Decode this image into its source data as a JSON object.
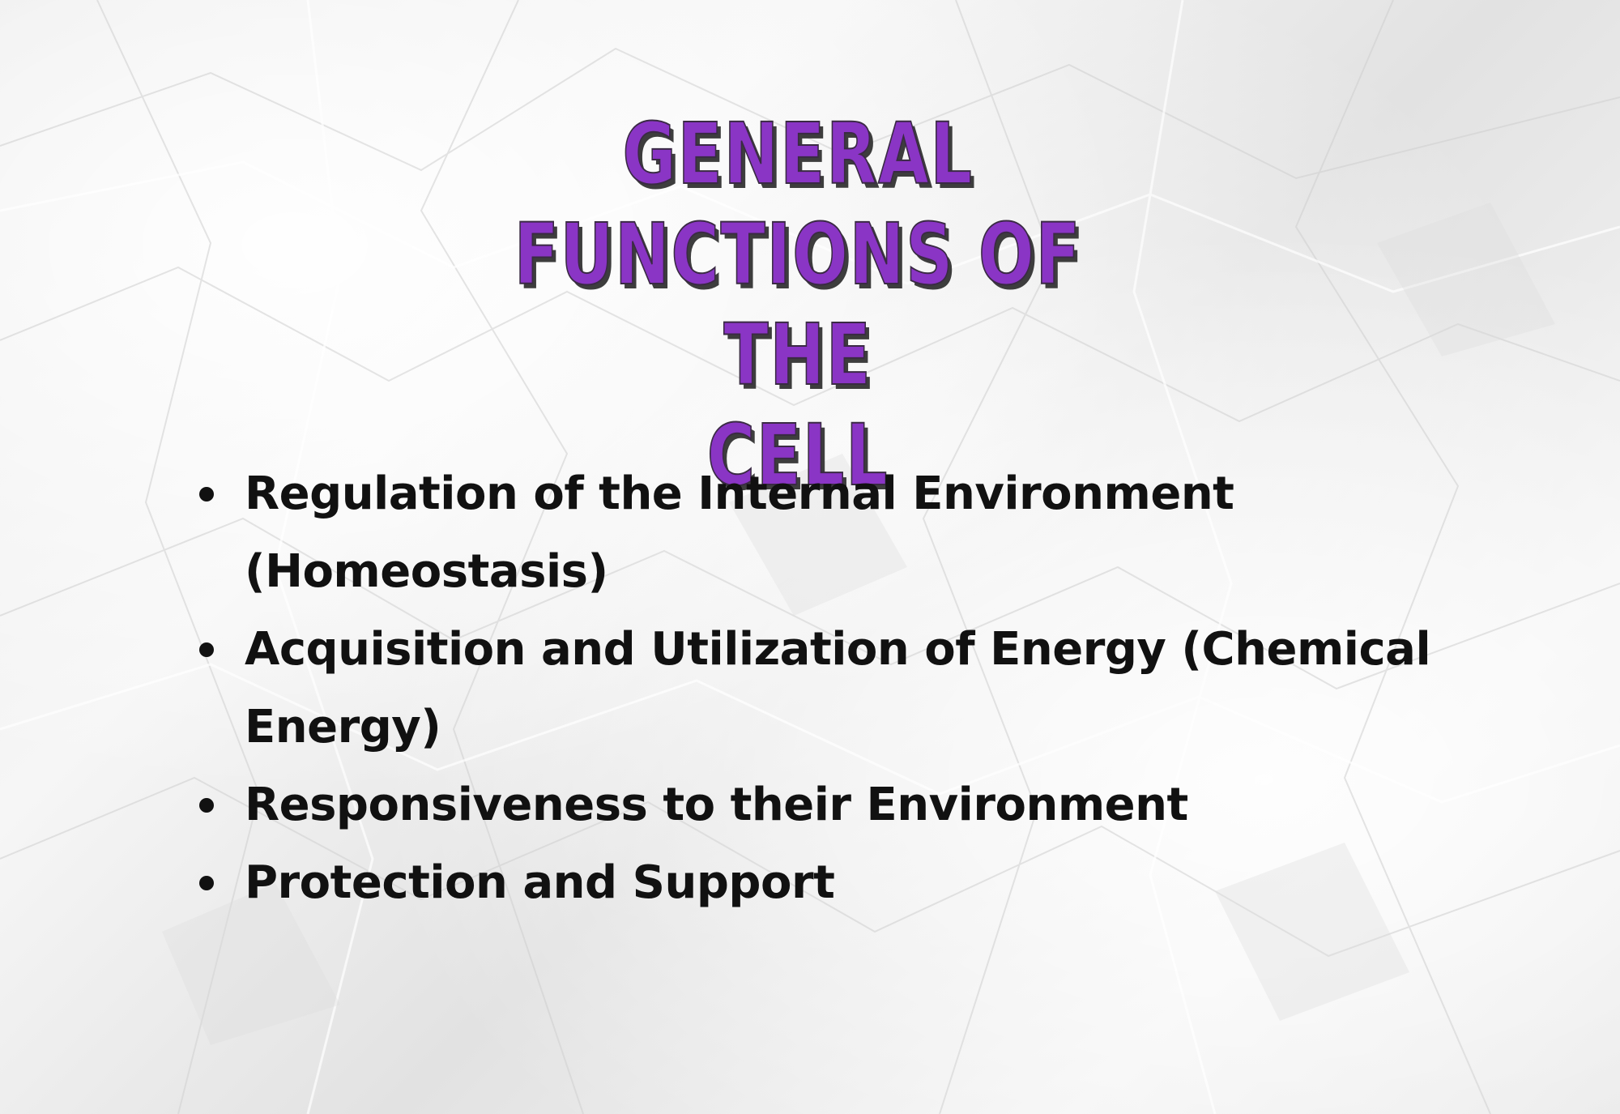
{
  "title": {
    "line1": "General",
    "line2": "Functions of the",
    "line3": "Cell"
  },
  "bullets": [
    "Regulation of the Internal Environment (Homeostasis)",
    "Acquisition and Utilization of Energy (Chemical Energy)",
    "Responsiveness to their Environment",
    "Protection and Support"
  ],
  "colors": {
    "title": "#8a35c5",
    "title_shadow": "#3d3d3d",
    "text": "#111111",
    "background": "#efefef"
  }
}
